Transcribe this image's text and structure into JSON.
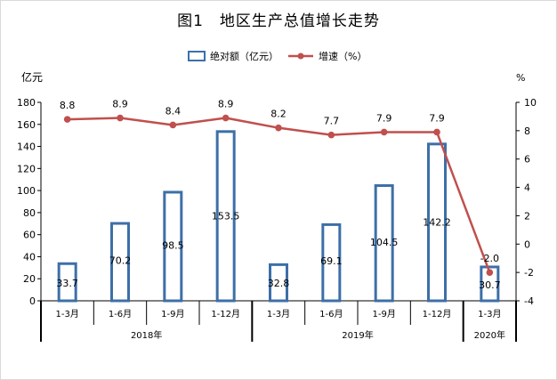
{
  "chart_data": {
    "title": "图1　地区生产总值增长走势",
    "type": "bar",
    "categories": [
      "1-3月",
      "1-6月",
      "1-9月",
      "1-12月",
      "1-3月",
      "1-6月",
      "1-9月",
      "1-12月",
      "1-3月"
    ],
    "year_groups": [
      {
        "label": "2018年",
        "count": 4
      },
      {
        "label": "2019年",
        "count": 4
      },
      {
        "label": "2020年",
        "count": 1
      }
    ],
    "series": [
      {
        "name": "绝对额（亿元）",
        "type": "bar",
        "axis": "left",
        "values": [
          33.7,
          70.2,
          98.5,
          153.5,
          32.8,
          69.1,
          104.5,
          142.2,
          30.7
        ],
        "labels": [
          "33.7",
          "70.2",
          "98.5",
          "153.5",
          "32.8",
          "69.1",
          "104.5",
          "142.2",
          "30.7"
        ]
      },
      {
        "name": "增速（%）",
        "type": "line",
        "axis": "right",
        "values": [
          8.8,
          8.9,
          8.4,
          8.9,
          8.2,
          7.7,
          7.9,
          7.9,
          -2.0
        ],
        "labels": [
          "8.8",
          "8.9",
          "8.4",
          "8.9",
          "8.2",
          "7.7",
          "7.9",
          "7.9",
          "-2.0"
        ]
      }
    ],
    "ylabel": "亿元",
    "y2label": "%",
    "ylim": [
      0,
      180
    ],
    "y2lim": [
      -4,
      10
    ],
    "yticks": [
      0,
      20,
      40,
      60,
      80,
      100,
      120,
      140,
      160,
      180
    ],
    "y2ticks": [
      -4,
      -2,
      0,
      2,
      4,
      6,
      8,
      10
    ],
    "grid": false,
    "legend_position": "top-center",
    "colors": {
      "bar_stroke": "#3d6fa8",
      "bar_fill": "#ffffff",
      "line": "#c0504d",
      "axis": "#000000"
    }
  }
}
